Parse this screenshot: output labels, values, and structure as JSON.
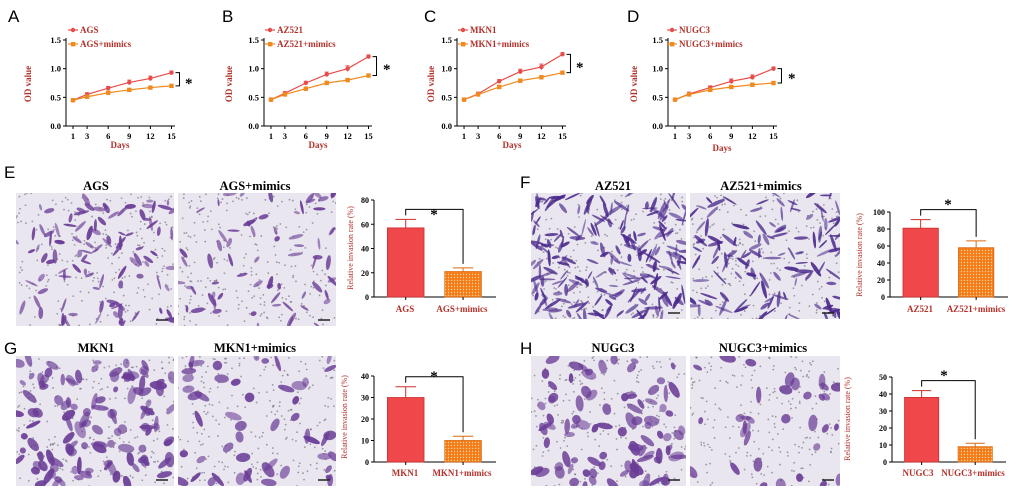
{
  "colors": {
    "control": "#e84c4a",
    "mimics": "#f08a1e",
    "control_bar": "#f0484a",
    "mimics_bar": "#f47b17",
    "axis": "#000000",
    "label_red": "#b3312b",
    "stain_light": "#e9e6ef",
    "stain_dark": "#6a3c96"
  },
  "line_panels": [
    {
      "panel": "A",
      "legend": [
        "AGS",
        "AGS+mimics"
      ],
      "ylabel": "OD value",
      "xlabel": "Days",
      "yticks": [
        "0.0",
        "0.5",
        "1.0",
        "1.5"
      ],
      "xticks": [
        "1",
        "3",
        "6",
        "9",
        "12",
        "15"
      ],
      "star": "*"
    },
    {
      "panel": "B",
      "legend": [
        "AZ521",
        "AZ521+mimics"
      ],
      "ylabel": "OD value",
      "xlabel": "Days",
      "yticks": [
        "0.0",
        "0.5",
        "1.0",
        "1.5"
      ],
      "xticks": [
        "1",
        "3",
        "6",
        "9",
        "12",
        "15"
      ],
      "star": "*"
    },
    {
      "panel": "C",
      "legend": [
        "MKN1",
        "MKN1+mimics"
      ],
      "ylabel": "OD value",
      "xlabel": "Days",
      "yticks": [
        "0.0",
        "0.5",
        "1.0",
        "1.5"
      ],
      "xticks": [
        "1",
        "3",
        "6",
        "9",
        "12",
        "15"
      ],
      "star": "*"
    },
    {
      "panel": "D",
      "legend": [
        "NUGC3",
        "NUGC3+mimics"
      ],
      "ylabel": "OD value",
      "xlabel": "Days",
      "yticks": [
        "0.0",
        "0.5",
        "1.0",
        "1.5"
      ],
      "xticks": [
        "1",
        "3",
        "6",
        "9",
        "12",
        "15"
      ],
      "star": "*"
    }
  ],
  "bar_panels": [
    {
      "panel": "E",
      "images": [
        "AGS",
        "AGS+mimics"
      ],
      "ylabel": "Relative invasion rate (%)",
      "yticks": [
        "0",
        "20",
        "40",
        "60",
        "80"
      ],
      "categories": [
        "AGS",
        "AGS+mimics"
      ],
      "star": "*"
    },
    {
      "panel": "F",
      "images": [
        "AZ521",
        "AZ521+mimics"
      ],
      "ylabel": "Relative invasion rate (%)",
      "yticks": [
        "0",
        "20",
        "40",
        "60",
        "80",
        "100"
      ],
      "categories": [
        "AZ521",
        "AZ521+mimics"
      ],
      "star": "*"
    },
    {
      "panel": "G",
      "images": [
        "MKN1",
        "MKN1+mimics"
      ],
      "ylabel": "Relative invasion rate (%)",
      "yticks": [
        "0",
        "10",
        "20",
        "30",
        "40"
      ],
      "categories": [
        "MKN1",
        "MKN1+mimics"
      ],
      "star": "*"
    },
    {
      "panel": "H",
      "images": [
        "NUGC3",
        "NUGC3+mimics"
      ],
      "ylabel": "Relative invasion rate (%)",
      "yticks": [
        "0",
        "10",
        "20",
        "30",
        "40",
        "50"
      ],
      "categories": [
        "NUGC3",
        "NUGC3+mimics"
      ],
      "star": "*"
    }
  ],
  "chart_data": [
    {
      "type": "line",
      "panel": "A",
      "xlabel": "Days",
      "ylabel": "OD value",
      "x": [
        1,
        3,
        6,
        9,
        12,
        15
      ],
      "ylim": [
        0,
        1.5
      ],
      "series": [
        {
          "name": "AGS",
          "values": [
            0.45,
            0.55,
            0.66,
            0.76,
            0.83,
            0.93
          ],
          "errors": [
            0.02,
            0.03,
            0.03,
            0.04,
            0.04,
            0.03
          ]
        },
        {
          "name": "AGS+mimics",
          "values": [
            0.45,
            0.51,
            0.58,
            0.63,
            0.67,
            0.7
          ],
          "errors": [
            0.02,
            0.02,
            0.02,
            0.02,
            0.02,
            0.02
          ]
        }
      ]
    },
    {
      "type": "line",
      "panel": "B",
      "xlabel": "Days",
      "ylabel": "OD value",
      "x": [
        1,
        3,
        6,
        9,
        12,
        15
      ],
      "ylim": [
        0,
        1.5
      ],
      "series": [
        {
          "name": "AZ521",
          "values": [
            0.46,
            0.57,
            0.75,
            0.9,
            1.0,
            1.21
          ],
          "errors": [
            0.02,
            0.03,
            0.03,
            0.04,
            0.05,
            0.03
          ]
        },
        {
          "name": "AZ521+mimics",
          "values": [
            0.46,
            0.55,
            0.65,
            0.75,
            0.8,
            0.88
          ],
          "errors": [
            0.02,
            0.02,
            0.03,
            0.03,
            0.03,
            0.02
          ]
        }
      ]
    },
    {
      "type": "line",
      "panel": "C",
      "xlabel": "Days",
      "ylabel": "OD value",
      "x": [
        1,
        3,
        6,
        9,
        12,
        15
      ],
      "ylim": [
        0,
        1.5
      ],
      "series": [
        {
          "name": "MKN1",
          "values": [
            0.46,
            0.56,
            0.78,
            0.95,
            1.03,
            1.25
          ],
          "errors": [
            0.02,
            0.03,
            0.03,
            0.04,
            0.05,
            0.03
          ]
        },
        {
          "name": "MKN1+mimics",
          "values": [
            0.46,
            0.55,
            0.68,
            0.79,
            0.85,
            0.93
          ],
          "errors": [
            0.02,
            0.02,
            0.03,
            0.03,
            0.03,
            0.02
          ]
        }
      ]
    },
    {
      "type": "line",
      "panel": "D",
      "xlabel": "Days",
      "ylabel": "OD value",
      "x": [
        1,
        3,
        6,
        9,
        12,
        15
      ],
      "ylim": [
        0,
        1.5
      ],
      "series": [
        {
          "name": "NUGC3",
          "values": [
            0.46,
            0.56,
            0.67,
            0.78,
            0.85,
            1.0
          ],
          "errors": [
            0.02,
            0.03,
            0.03,
            0.04,
            0.04,
            0.03
          ]
        },
        {
          "name": "NUGC3+mimics",
          "values": [
            0.46,
            0.55,
            0.63,
            0.68,
            0.72,
            0.75
          ],
          "errors": [
            0.02,
            0.02,
            0.02,
            0.02,
            0.02,
            0.02
          ]
        }
      ]
    },
    {
      "type": "bar",
      "panel": "E",
      "categories": [
        "AGS",
        "AGS+mimics"
      ],
      "values": [
        57,
        21
      ],
      "errors": [
        7,
        3
      ],
      "ylabel": "Relative invasion rate (%)",
      "ylim": [
        0,
        80
      ]
    },
    {
      "type": "bar",
      "panel": "F",
      "categories": [
        "AZ521",
        "AZ521+mimics"
      ],
      "values": [
        81,
        58
      ],
      "errors": [
        10,
        8
      ],
      "ylabel": "Relative invasion rate (%)",
      "ylim": [
        0,
        100
      ]
    },
    {
      "type": "bar",
      "panel": "G",
      "categories": [
        "MKN1",
        "MKN1+mimics"
      ],
      "values": [
        30,
        10
      ],
      "errors": [
        5,
        2
      ],
      "ylabel": "Relative invasion rate (%)",
      "ylim": [
        0,
        40
      ]
    },
    {
      "type": "bar",
      "panel": "H",
      "categories": [
        "NUGC3",
        "NUGC3+mimics"
      ],
      "values": [
        38,
        9
      ],
      "errors": [
        4,
        2
      ],
      "ylabel": "Relative invasion rate (%)",
      "ylim": [
        0,
        50
      ]
    }
  ]
}
